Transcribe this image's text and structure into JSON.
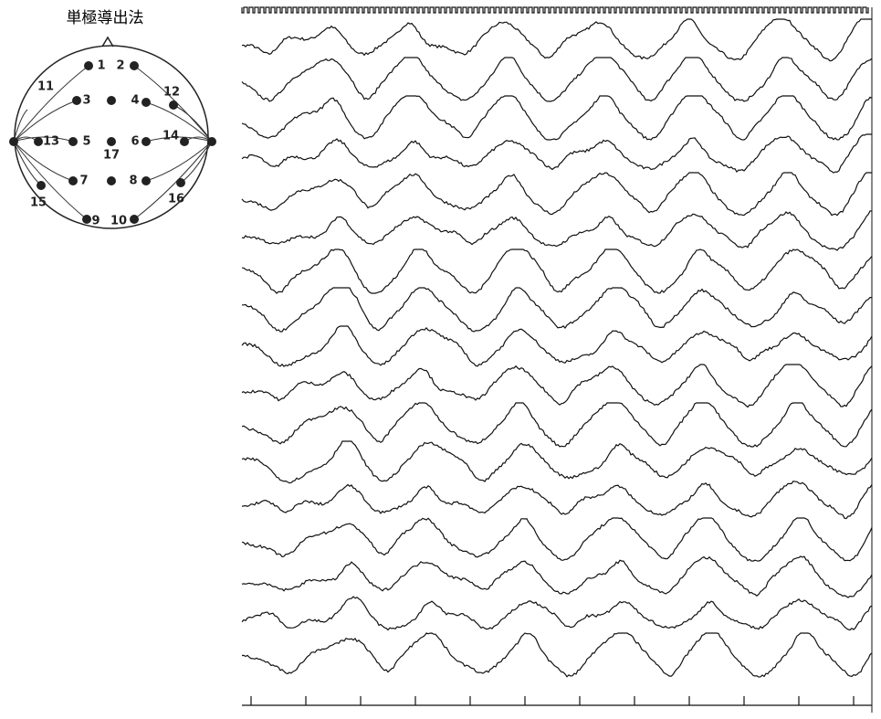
{
  "header": {
    "title": "単極導出法"
  },
  "electrodes": [
    "1",
    "2",
    "3",
    "4",
    "5",
    "6",
    "7",
    "8",
    "9",
    "10",
    "11",
    "12",
    "13",
    "14",
    "15",
    "16",
    "17"
  ]
}
